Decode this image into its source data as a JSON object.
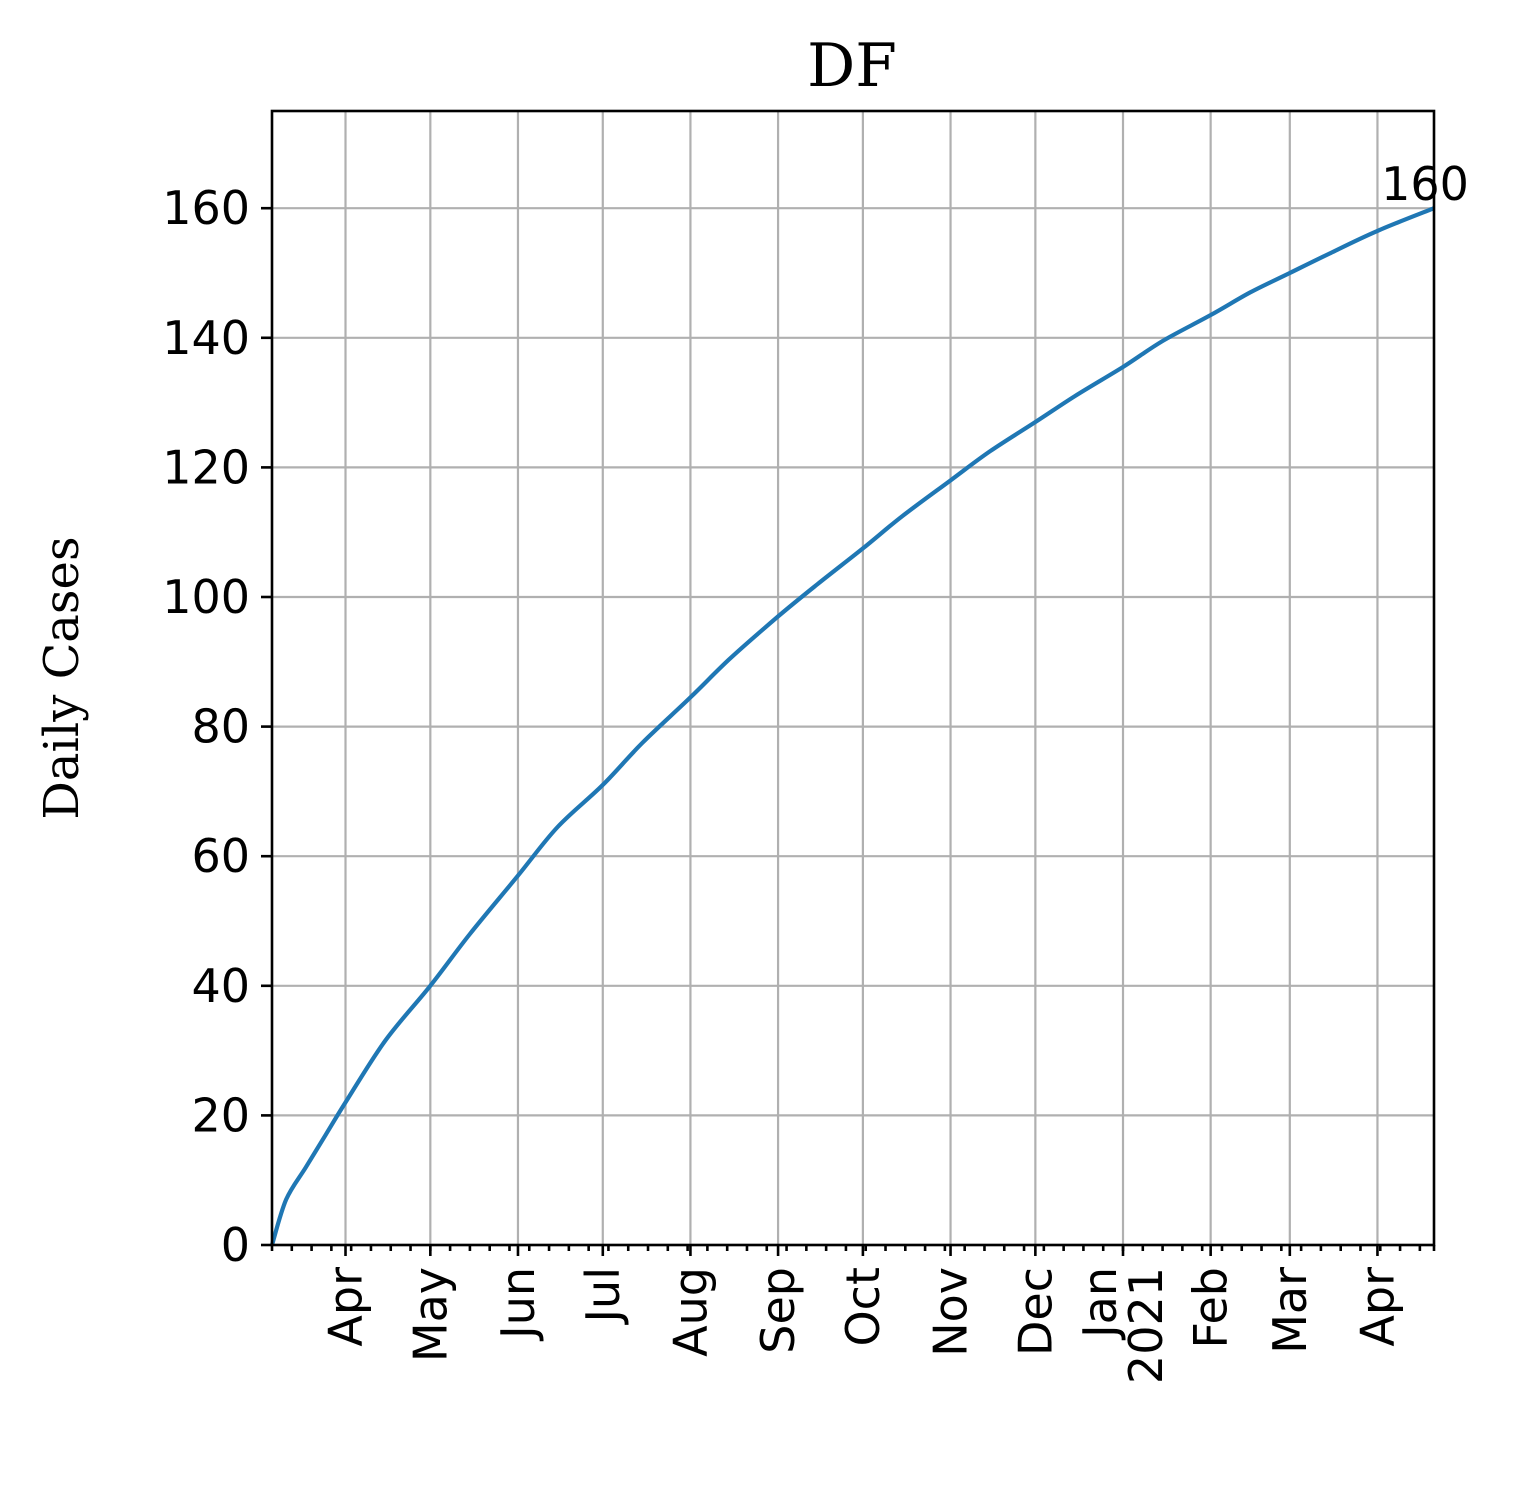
{
  "chart_data": {
    "type": "line",
    "title": "DF",
    "xlabel": "",
    "ylabel": "Daily Cases",
    "grid": true,
    "x_axis": "date",
    "x_range": [
      "2020-03-06",
      "2021-04-21"
    ],
    "ylim": [
      0,
      175
    ],
    "y_ticks": [
      0,
      20,
      40,
      60,
      80,
      100,
      120,
      140,
      160
    ],
    "x_ticks": [
      {
        "date": "2020-04-01",
        "label": "Apr"
      },
      {
        "date": "2020-05-01",
        "label": "May"
      },
      {
        "date": "2020-06-01",
        "label": "Jun"
      },
      {
        "date": "2020-07-01",
        "label": "Jul"
      },
      {
        "date": "2020-08-01",
        "label": "Aug"
      },
      {
        "date": "2020-09-01",
        "label": "Sep"
      },
      {
        "date": "2020-10-01",
        "label": "Oct"
      },
      {
        "date": "2020-11-01",
        "label": "Nov"
      },
      {
        "date": "2020-12-01",
        "label": "Dec"
      },
      {
        "date": "2021-01-01",
        "label": "Jan\n2021"
      },
      {
        "date": "2021-02-01",
        "label": "Feb"
      },
      {
        "date": "2021-03-01",
        "label": "Mar"
      },
      {
        "date": "2021-04-01",
        "label": "Apr"
      }
    ],
    "series": [
      {
        "color": "#1f77b4",
        "x": [
          "2020-03-06",
          "2020-03-11",
          "2020-03-18",
          "2020-03-25",
          "2020-04-01",
          "2020-04-15",
          "2020-05-01",
          "2020-05-15",
          "2020-06-01",
          "2020-06-15",
          "2020-07-01",
          "2020-07-15",
          "2020-08-01",
          "2020-08-15",
          "2020-09-01",
          "2020-09-15",
          "2020-10-01",
          "2020-10-15",
          "2020-11-01",
          "2020-11-15",
          "2020-12-01",
          "2020-12-15",
          "2021-01-01",
          "2021-01-15",
          "2021-02-01",
          "2021-02-15",
          "2021-03-01",
          "2021-03-15",
          "2021-04-01",
          "2021-04-21"
        ],
        "y": [
          0,
          7,
          12,
          17,
          22,
          31.5,
          40,
          48,
          57,
          64.5,
          71,
          77.5,
          84.5,
          90.5,
          97,
          102,
          107.5,
          112.5,
          118,
          122.5,
          127,
          131,
          135.5,
          139.5,
          143.5,
          147,
          150,
          153,
          156.5,
          160
        ]
      }
    ],
    "annotations": [
      {
        "text": "160",
        "x": "2021-04-21",
        "y": 160
      }
    ]
  }
}
